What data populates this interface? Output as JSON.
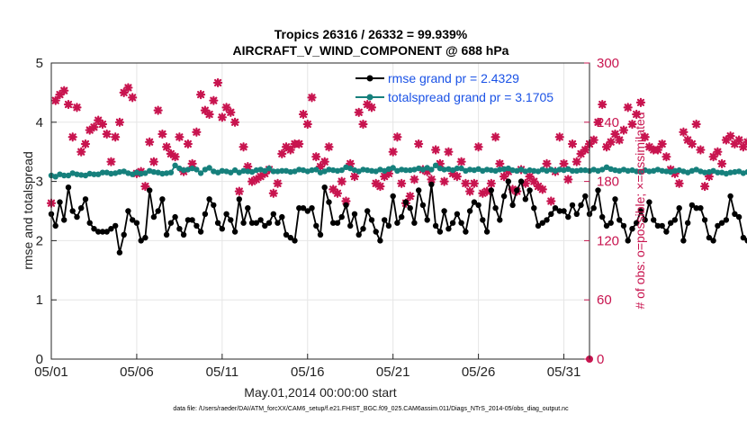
{
  "chart_data": {
    "type": "line",
    "title_line1": "Tropics 26316 / 26332 = 99.939%",
    "title_line2": "AIRCRAFT_V_WIND_COMPONENT @ 688 hPa",
    "xlabel": "May.01,2014 00:00:00 start",
    "ylabel_left": "rmse and totalspread",
    "ylabel_right": "# of obs: o=possible; ×=assimilated",
    "xlim": [
      0,
      31.5
    ],
    "ylim_left": [
      0,
      5
    ],
    "ylim_right": [
      0,
      300
    ],
    "x_tick_values": [
      0,
      5,
      10,
      15,
      20,
      25,
      30
    ],
    "x_tick_labels": [
      "05/01",
      "05/06",
      "05/11",
      "05/16",
      "05/21",
      "05/26",
      "05/31"
    ],
    "y_left_ticks": [
      "0",
      "1",
      "2",
      "3",
      "4",
      "5"
    ],
    "y_right_ticks": [
      "0",
      "60",
      "120",
      "180",
      "240",
      "300"
    ],
    "x_step_days": 0.25,
    "colors": {
      "rmse": "#000000",
      "spread": "#16807c",
      "obs": "#c8144f",
      "legend_text": "#1a52e6"
    },
    "series": [
      {
        "name": "rmse",
        "legend": "rmse grand pr = 2.4329",
        "axis": "left",
        "values": [
          2.45,
          2.25,
          2.65,
          2.35,
          2.9,
          2.5,
          2.4,
          2.55,
          2.7,
          2.3,
          2.2,
          2.15,
          2.15,
          2.15,
          2.2,
          2.25,
          1.8,
          2.1,
          2.5,
          2.35,
          2.3,
          2.0,
          2.05,
          2.85,
          2.4,
          2.5,
          2.7,
          2.1,
          2.3,
          2.4,
          2.2,
          2.1,
          2.35,
          2.35,
          2.25,
          2.15,
          2.45,
          2.7,
          2.6,
          2.3,
          2.2,
          2.45,
          2.35,
          2.15,
          2.7,
          2.3,
          2.55,
          2.3,
          2.3,
          2.35,
          2.25,
          2.3,
          2.45,
          2.3,
          2.4,
          2.1,
          2.05,
          2.0,
          2.55,
          2.55,
          2.5,
          2.55,
          2.25,
          2.1,
          2.9,
          2.65,
          2.3,
          2.3,
          2.4,
          2.6,
          2.25,
          2.45,
          2.1,
          2.2,
          2.5,
          2.35,
          2.15,
          2.0,
          2.35,
          2.25,
          2.75,
          2.3,
          2.4,
          2.65,
          2.55,
          2.3,
          2.85,
          2.6,
          2.35,
          2.95,
          2.25,
          2.15,
          2.5,
          2.2,
          2.3,
          2.45,
          2.3,
          2.15,
          2.5,
          2.65,
          2.6,
          2.35,
          2.15,
          2.85,
          2.55,
          2.35,
          2.75,
          3.0,
          2.6,
          2.85,
          3.0,
          2.7,
          2.85,
          2.55,
          2.25,
          2.3,
          2.35,
          2.45,
          2.55,
          2.5,
          2.5,
          2.4,
          2.6,
          2.45,
          2.6,
          2.75,
          2.45,
          2.55,
          2.85,
          2.4,
          2.25,
          2.3,
          2.7,
          2.35,
          2.25,
          2.0,
          2.2,
          2.3,
          2.5,
          2.35,
          2.65,
          2.35,
          2.25,
          2.25,
          2.15,
          2.3,
          2.35,
          2.55,
          2.0,
          2.3,
          2.6,
          2.55,
          2.55,
          2.35,
          2.05,
          2.0,
          2.25,
          2.3,
          2.35,
          2.75,
          2.45,
          2.4,
          2.05,
          2.0,
          2.05,
          2.05,
          1.95
        ]
      },
      {
        "name": "totalspread",
        "legend": "totalspread grand pr = 3.1705",
        "axis": "left",
        "values": [
          3.1,
          3.08,
          3.12,
          3.1,
          3.1,
          3.14,
          3.12,
          3.11,
          3.1,
          3.13,
          3.12,
          3.12,
          3.15,
          3.15,
          3.13,
          3.14,
          3.16,
          3.17,
          3.14,
          3.12,
          3.15,
          3.13,
          3.14,
          3.18,
          3.16,
          3.15,
          3.13,
          3.14,
          3.15,
          3.27,
          3.22,
          3.19,
          3.2,
          3.22,
          3.2,
          3.14,
          3.2,
          3.23,
          3.17,
          3.15,
          3.18,
          3.17,
          3.15,
          3.19,
          3.15,
          3.18,
          3.17,
          3.16,
          3.19,
          3.2,
          3.18,
          3.22,
          3.17,
          3.17,
          3.18,
          3.18,
          3.16,
          3.17,
          3.2,
          3.19,
          3.17,
          3.19,
          3.2,
          3.15,
          3.17,
          3.2,
          3.19,
          3.18,
          3.19,
          3.24,
          3.22,
          3.19,
          3.17,
          3.2,
          3.19,
          3.18,
          3.17,
          3.2,
          3.18,
          3.21,
          3.23,
          3.18,
          3.2,
          3.19,
          3.19,
          3.2,
          3.22,
          3.2,
          3.23,
          3.2,
          3.27,
          3.22,
          3.2,
          3.21,
          3.19,
          3.22,
          3.22,
          3.18,
          3.2,
          3.19,
          3.21,
          3.18,
          3.2,
          3.19,
          3.18,
          3.2,
          3.21,
          3.22,
          3.19,
          3.18,
          3.2,
          3.17,
          3.19,
          3.18,
          3.17,
          3.2,
          3.18,
          3.2,
          3.18,
          3.2,
          3.19,
          3.21,
          3.18,
          3.18,
          3.19,
          3.19,
          3.18,
          3.2,
          3.18,
          3.2,
          3.24,
          3.21,
          3.19,
          3.18,
          3.2,
          3.18,
          3.19,
          3.17,
          3.16,
          3.19,
          3.17,
          3.18,
          3.2,
          3.18,
          3.17,
          3.16,
          3.18,
          3.19,
          3.17,
          3.15,
          3.18,
          3.2,
          3.17,
          3.15,
          3.16,
          3.18,
          3.15,
          3.15,
          3.13,
          3.15,
          3.16,
          3.17,
          3.14,
          3.16,
          3.13,
          3.12,
          3.15,
          3.14,
          3.15,
          3.14,
          3.16
        ]
      },
      {
        "name": "obs_assimilated",
        "axis": "right",
        "marker": "×",
        "values": [
          158,
          262,
          268,
          272,
          258,
          225,
          255,
          210,
          218,
          232,
          235,
          242,
          238,
          228,
          200,
          225,
          240,
          270,
          275,
          265,
          188,
          190,
          175,
          220,
          200,
          252,
          228,
          215,
          208,
          205,
          225,
          190,
          218,
          198,
          230,
          268,
          252,
          248,
          262,
          280,
          245,
          255,
          250,
          240,
          170,
          215,
          195,
          180,
          182,
          185,
          188,
          192,
          168,
          178,
          208,
          215,
          212,
          218,
          218,
          248,
          238,
          265,
          205,
          195,
          200,
          215,
          172,
          168,
          180,
          160,
          198,
          185,
          250,
          238,
          258,
          255,
          178,
          175,
          185,
          188,
          210,
          225,
          178,
          158,
          165,
          182,
          218,
          192,
          190,
          182,
          212,
          198,
          180,
          210,
          188,
          185,
          200,
          178,
          170,
          178,
          215,
          168,
          170,
          178,
          225,
          198,
          185,
          190,
          172,
          170,
          192,
          178,
          185,
          180,
          175,
          172,
          198,
          160,
          190,
          225,
          198,
          182,
          218,
          200,
          208,
          212,
          218,
          222,
          240,
          258,
          215,
          220,
          228,
          222,
          232,
          255,
          238,
          248,
          260,
          225,
          215,
          212,
          212,
          218,
          205,
          192,
          188,
          178,
          230,
          222,
          218,
          238,
          212,
          175,
          185,
          205,
          210,
          198,
          222,
          226,
          218,
          222,
          215,
          220,
          228,
          205,
          210,
          190,
          215,
          245,
          255,
          210,
          200,
          198
        ]
      }
    ],
    "footer": "data file: /Users/raeder/DAI/ATM_forcXX/CAM6_setup/f.e21.FHIST_BGC.f09_025.CAM6assim.011/Diags_NTrS_2014-05/obs_diag_output.nc"
  }
}
